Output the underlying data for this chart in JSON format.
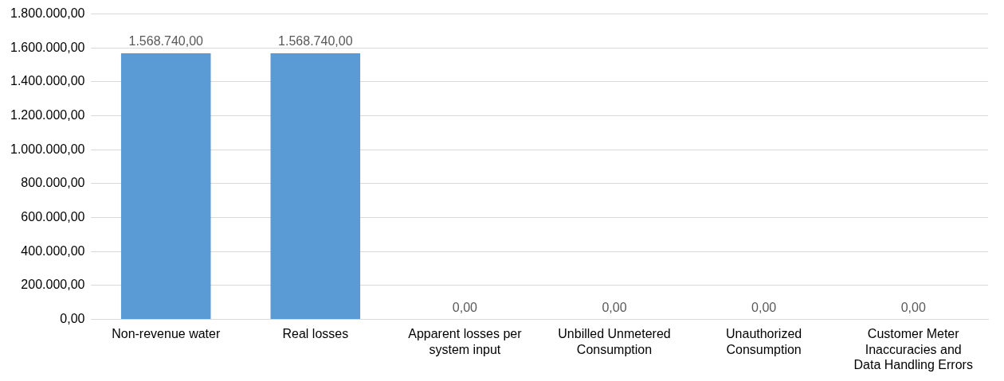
{
  "chart_data": {
    "type": "bar",
    "categories": [
      "Non-revenue water",
      "Real losses",
      "Apparent losses per system input",
      "Unbilled Unmetered Consumption",
      "Unauthorized Consumption",
      "Customer Meter Inaccuracies and Data Handling Errors"
    ],
    "values": [
      1568740,
      1568740,
      0,
      0,
      0,
      0
    ],
    "value_labels": [
      "1.568.740,00",
      "1.568.740,00",
      "0,00",
      "0,00",
      "0,00",
      "0,00"
    ],
    "color": "#5b9bd5",
    "ylim": [
      0,
      1800000
    ],
    "yticks": [
      {
        "value": 0,
        "label": "0,00"
      },
      {
        "value": 200000,
        "label": "200.000,00"
      },
      {
        "value": 400000,
        "label": "400.000,00"
      },
      {
        "value": 600000,
        "label": "600.000,00"
      },
      {
        "value": 800000,
        "label": "800.000,00"
      },
      {
        "value": 1000000,
        "label": "1.000.000,00"
      },
      {
        "value": 1200000,
        "label": "1.200.000,00"
      },
      {
        "value": 1400000,
        "label": "1.400.000,00"
      },
      {
        "value": 1600000,
        "label": "1.600.000,00"
      },
      {
        "value": 1800000,
        "label": "1.800.000,00"
      }
    ],
    "grid": "y",
    "legend": false
  }
}
